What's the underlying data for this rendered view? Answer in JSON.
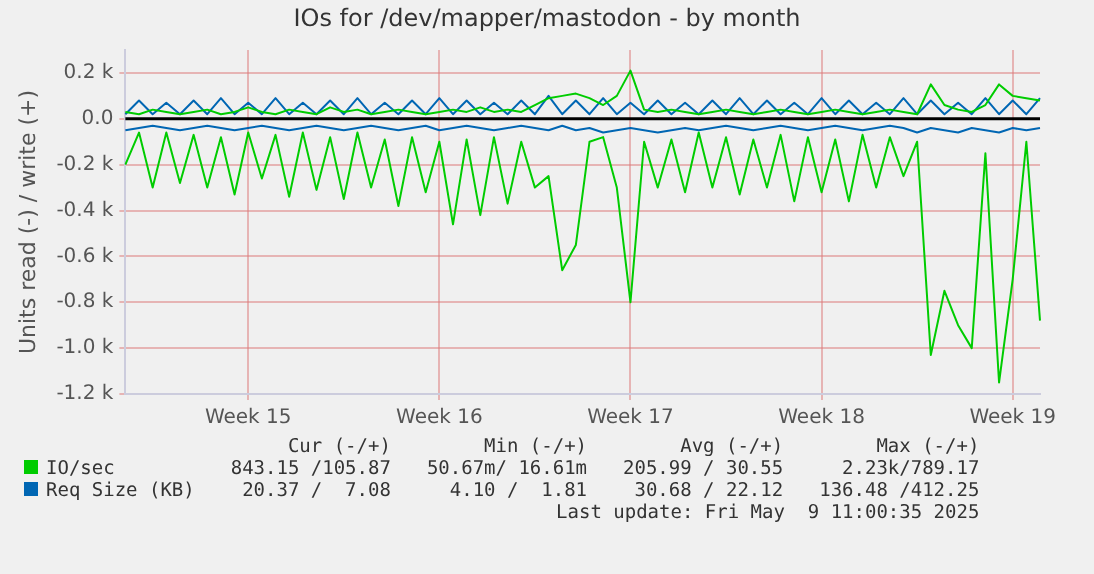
{
  "chart_data": {
    "type": "line",
    "title": "IOs for /dev/mapper/mastodon - by month",
    "ylabel": "Units read (-) / write (+)",
    "categories": [
      null,
      null,
      null,
      null,
      null,
      null,
      null,
      null,
      null,
      "Week 15",
      null,
      null,
      null,
      null,
      null,
      null,
      null,
      null,
      null,
      null,
      null,
      null,
      null,
      "Week 16",
      null,
      null,
      null,
      null,
      null,
      null,
      null,
      null,
      null,
      null,
      null,
      null,
      null,
      "Week 17",
      null,
      null,
      null,
      null,
      null,
      null,
      null,
      null,
      null,
      null,
      null,
      null,
      null,
      "Week 18",
      null,
      null,
      null,
      null,
      null,
      null,
      null,
      null,
      null,
      null,
      null,
      null,
      null,
      "Week 19",
      null,
      null
    ],
    "series": [
      {
        "name": "IO/sec",
        "color": "#00cc00",
        "values": [
          -200,
          -60,
          -300,
          -60,
          -280,
          -70,
          -300,
          -80,
          -330,
          -60,
          -260,
          -70,
          -340,
          -60,
          -310,
          -80,
          -350,
          -60,
          -300,
          -90,
          -380,
          -80,
          -320,
          -100,
          -460,
          -90,
          -420,
          -80,
          -370,
          -100,
          -300,
          -250,
          -660,
          -550,
          -100,
          -80,
          -300,
          -800,
          -100,
          -300,
          -90,
          -320,
          -60,
          -300,
          -80,
          -330,
          -90,
          -300,
          -70,
          -360,
          -80,
          -320,
          -90,
          -360,
          -70,
          -300,
          -80,
          -250,
          -100,
          -1030,
          -750,
          -900,
          -1000,
          -150,
          -1150,
          -700,
          -100,
          -880
        ]
      },
      {
        "color": "#00cc00",
        "values": [
          30,
          20,
          40,
          30,
          20,
          30,
          40,
          20,
          30,
          50,
          30,
          20,
          40,
          30,
          20,
          50,
          30,
          40,
          20,
          30,
          40,
          30,
          20,
          30,
          40,
          30,
          50,
          30,
          40,
          30,
          60,
          90,
          100,
          110,
          90,
          60,
          100,
          210,
          40,
          30,
          40,
          30,
          20,
          30,
          40,
          30,
          20,
          30,
          40,
          30,
          20,
          30,
          40,
          30,
          20,
          30,
          40,
          30,
          20,
          150,
          60,
          40,
          30,
          60,
          150,
          100,
          90,
          80
        ]
      },
      {
        "name": "Req Size (KB)",
        "color": "#0066b3",
        "values": [
          20,
          80,
          20,
          70,
          20,
          80,
          20,
          90,
          20,
          70,
          20,
          90,
          20,
          70,
          20,
          80,
          20,
          90,
          20,
          70,
          20,
          80,
          20,
          90,
          20,
          80,
          20,
          70,
          20,
          80,
          20,
          100,
          20,
          80,
          20,
          90,
          20,
          70,
          20,
          80,
          20,
          70,
          20,
          80,
          20,
          90,
          20,
          80,
          20,
          70,
          20,
          90,
          20,
          80,
          20,
          70,
          20,
          90,
          20,
          80,
          20,
          70,
          20,
          90,
          20,
          80,
          20,
          90
        ]
      },
      {
        "color": "#0066b3",
        "values": [
          -50,
          -40,
          -30,
          -40,
          -50,
          -40,
          -30,
          -40,
          -50,
          -40,
          -30,
          -40,
          -50,
          -40,
          -30,
          -40,
          -50,
          -40,
          -30,
          -40,
          -50,
          -40,
          -30,
          -50,
          -40,
          -30,
          -40,
          -50,
          -40,
          -30,
          -40,
          -50,
          -30,
          -50,
          -40,
          -60,
          -50,
          -40,
          -50,
          -60,
          -50,
          -40,
          -50,
          -40,
          -30,
          -40,
          -50,
          -40,
          -30,
          -40,
          -50,
          -40,
          -30,
          -40,
          -50,
          -40,
          -30,
          -40,
          -60,
          -40,
          -50,
          -60,
          -40,
          -50,
          -60,
          -40,
          -50,
          -40
        ]
      }
    ],
    "ylim": [
      -1200,
      300
    ],
    "yticks": [
      {
        "value": -1200,
        "label": "-1.2 k"
      },
      {
        "value": -1000,
        "label": "-1.0 k"
      },
      {
        "value": -800,
        "label": "-0.8 k"
      },
      {
        "value": -600,
        "label": "-0.6 k"
      },
      {
        "value": -400,
        "label": "-0.4 k"
      },
      {
        "value": -200,
        "label": "-0.2 k"
      },
      {
        "value": 0,
        "label": "0.0"
      },
      {
        "value": 200,
        "label": "0.2 k"
      }
    ],
    "ref_lines": [
      {
        "axis": "y",
        "value": 0,
        "color": "#000000"
      }
    ],
    "grid": true,
    "legend": "bottom",
    "marker": "none",
    "line_style": "solid",
    "annotations": [
      "Cur (-/+)",
      "Min (-/+)",
      "Avg (-/+)",
      "Max (-/+)",
      "843.15 /105.87",
      "50.67m/ 16.61m",
      "205.99 / 30.55",
      "2.23k/789.17",
      "20.37 /  7.08",
      "4.10 /  1.81",
      "30.68 / 22.12",
      "136.48 /412.25",
      "Last update: Fri May  9 11:00:35 2025"
    ]
  }
}
